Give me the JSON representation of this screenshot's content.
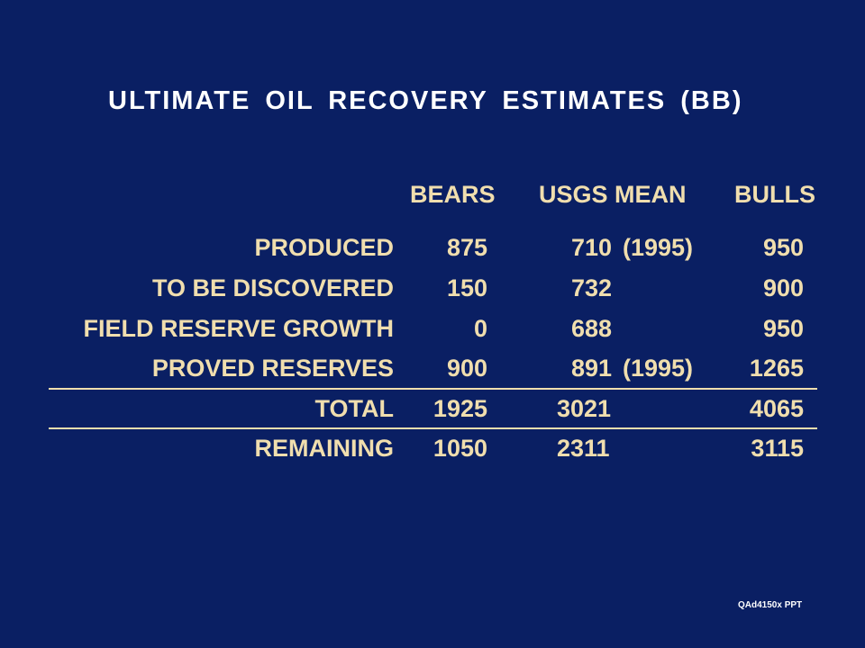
{
  "title": "ULTIMATE OIL RECOVERY ESTIMATES (BB)",
  "columns": [
    "BEARS",
    "USGS MEAN",
    "BULLS"
  ],
  "rows": [
    {
      "label": "PRODUCED",
      "bears": "875",
      "usgs": "710",
      "usgs_note": "(1995)",
      "bulls": "950"
    },
    {
      "label": "TO BE DISCOVERED",
      "bears": "150",
      "usgs": "732",
      "usgs_note": "",
      "bulls": "900"
    },
    {
      "label": "FIELD RESERVE GROWTH",
      "bears": "0",
      "usgs": "688",
      "usgs_note": "",
      "bulls": "950"
    },
    {
      "label": "PROVED RESERVES",
      "bears": "900",
      "usgs": "891",
      "usgs_note": "(1995)",
      "bulls": "1265"
    },
    {
      "label": "TOTAL",
      "bears": "1925",
      "usgs": "3021",
      "usgs_note": "",
      "bulls": "4065"
    },
    {
      "label": "REMAINING",
      "bears": "1050",
      "usgs": "2311",
      "usgs_note": "",
      "bulls": "3115"
    }
  ],
  "footer": "QAd4150x PPT"
}
